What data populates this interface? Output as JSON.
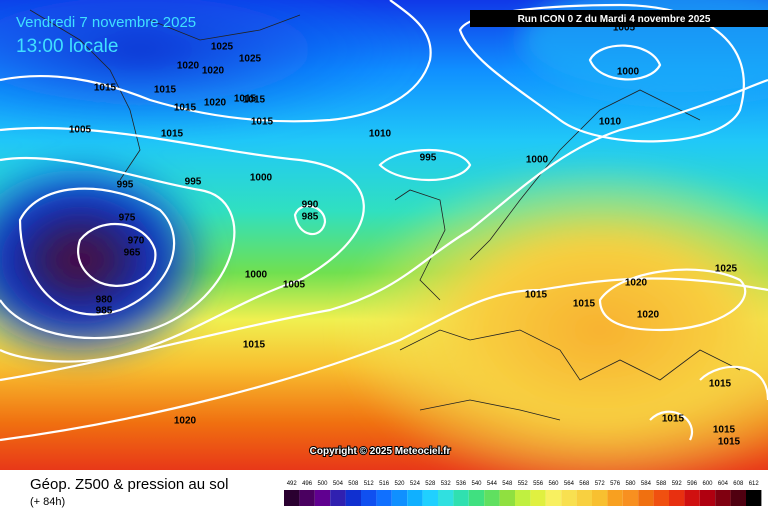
{
  "header": {
    "date": "Vendredi 7 novembre 2025",
    "time": "13:00 locale",
    "run": "Run ICON 0 Z du Mardi 4 novembre 2025"
  },
  "copyright": "Copyright © 2025 Meteociel.fr",
  "footer": {
    "title": "Géop. Z500 & pression au sol",
    "lead": "(+ 84h)"
  },
  "isobar_labels": [
    "1025",
    "1020",
    "1020",
    "1025",
    "1015",
    "1015",
    "1015",
    "1020",
    "1015",
    "1015",
    "1005",
    "1015",
    "1010",
    "995",
    "1000",
    "1010",
    "1000",
    "1005",
    "995",
    "995",
    "1000",
    "990",
    "985",
    "975",
    "970",
    "965",
    "980",
    "985",
    "1000",
    "1005",
    "1015",
    "1015",
    "1020",
    "1020",
    "1025",
    "1015",
    "1020",
    "1015",
    "1015",
    "1015",
    "1015",
    "1015"
  ],
  "scale": {
    "values": [
      492,
      496,
      500,
      504,
      508,
      512,
      516,
      520,
      524,
      528,
      532,
      536,
      540,
      544,
      548,
      552,
      556,
      560,
      564,
      568,
      572,
      576,
      580,
      584,
      588,
      592,
      596,
      600,
      604,
      608,
      612
    ],
    "colors": [
      "#2a0030",
      "#4a0060",
      "#600090",
      "#3020b0",
      "#1030d0",
      "#1050f0",
      "#1070ff",
      "#1090ff",
      "#10b0ff",
      "#20d0ff",
      "#30e0e0",
      "#30e0b0",
      "#40e080",
      "#60e060",
      "#90e040",
      "#c0f040",
      "#e0f040",
      "#f8f060",
      "#f8e050",
      "#f8d040",
      "#f8c030",
      "#f8a020",
      "#f89020",
      "#f07010",
      "#f05010",
      "#e83010",
      "#d01010",
      "#b00010",
      "#800010",
      "#500010",
      "#000000"
    ]
  }
}
